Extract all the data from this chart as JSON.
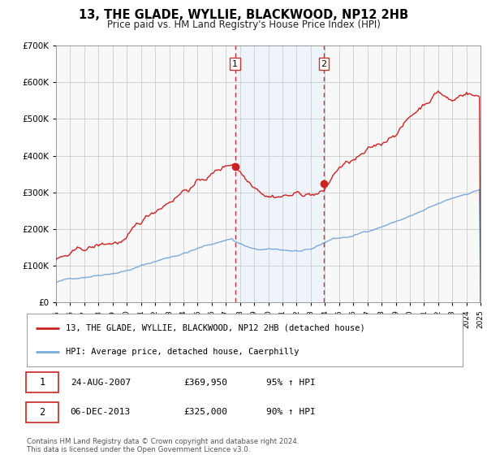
{
  "title": "13, THE GLADE, WYLLIE, BLACKWOOD, NP12 2HB",
  "subtitle": "Price paid vs. HM Land Registry's House Price Index (HPI)",
  "legend_line1": "13, THE GLADE, WYLLIE, BLACKWOOD, NP12 2HB (detached house)",
  "legend_line2": "HPI: Average price, detached house, Caerphilly",
  "sale1_label": "1",
  "sale2_label": "2",
  "sale1_date": "24-AUG-2007",
  "sale1_price": "£369,950",
  "sale1_hpi": "95% ↑ HPI",
  "sale2_date": "06-DEC-2013",
  "sale2_price": "£325,000",
  "sale2_hpi": "90% ↑ HPI",
  "footer_line1": "Contains HM Land Registry data © Crown copyright and database right 2024.",
  "footer_line2": "This data is licensed under the Open Government Licence v3.0.",
  "sale1_year": 2007.65,
  "sale2_year": 2013.92,
  "sale1_price_val": 369950,
  "sale2_price_val": 325000,
  "hpi_color": "#7aabdb",
  "price_color": "#cc2222",
  "sale_dot_color": "#cc2222",
  "shading_color": "#ddeeff",
  "vline_color": "#cc3333",
  "grid_color": "#cccccc",
  "background_color": "#f8f8f8",
  "ylim": [
    0,
    700000
  ],
  "xlim_start": 1995,
  "xlim_end": 2025
}
